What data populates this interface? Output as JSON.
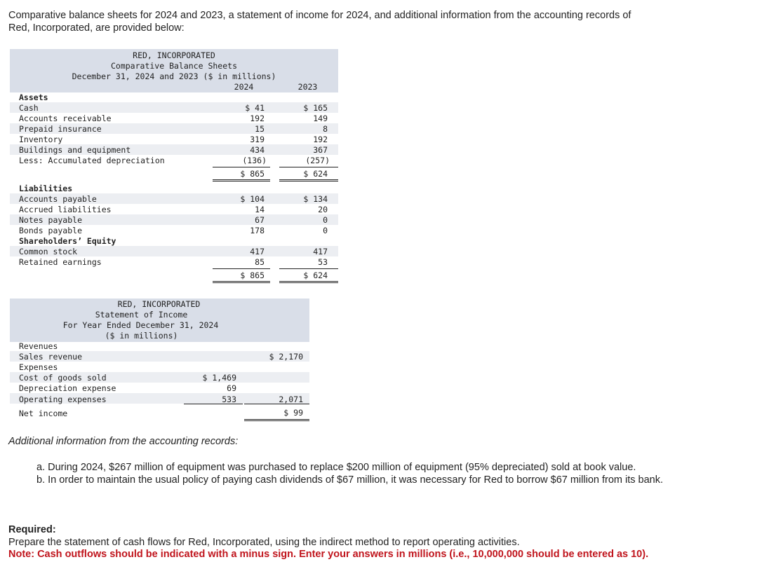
{
  "intro": "Comparative balance sheets for 2024 and 2023, a statement of income for 2024, and additional information from the accounting records of Red, Incorporated, are provided below:",
  "balance_sheet": {
    "title1": "RED, INCORPORATED",
    "title2": "Comparative Balance Sheets",
    "title3": "December 31, 2024 and 2023 ($ in millions)",
    "col_2024": "2024",
    "col_2023": "2023",
    "assets_heading": "Assets",
    "assets": [
      {
        "label": "Cash",
        "v2024": "$ 41",
        "v2023": "$ 165"
      },
      {
        "label": "Accounts receivable",
        "v2024": "192",
        "v2023": "149"
      },
      {
        "label": "Prepaid insurance",
        "v2024": "15",
        "v2023": "8"
      },
      {
        "label": "Inventory",
        "v2024": "319",
        "v2023": "192"
      },
      {
        "label": "Buildings and equipment",
        "v2024": "434",
        "v2023": "367"
      },
      {
        "label": "Less: Accumulated depreciation",
        "v2024": "(136)",
        "v2023": "(257)"
      }
    ],
    "assets_total_2024": "$ 865",
    "assets_total_2023": "$ 624",
    "liabilities_heading": "Liabilities",
    "liabilities": [
      {
        "label": "Accounts payable",
        "v2024": "$ 104",
        "v2023": "$ 134"
      },
      {
        "label": "Accrued liabilities",
        "v2024": "14",
        "v2023": "20"
      },
      {
        "label": "Notes payable",
        "v2024": "67",
        "v2023": "0"
      },
      {
        "label": "Bonds payable",
        "v2024": "178",
        "v2023": "0"
      }
    ],
    "equity_heading": "Shareholders’ Equity",
    "equity": [
      {
        "label": "Common stock",
        "v2024": "417",
        "v2023": "417"
      },
      {
        "label": "Retained earnings",
        "v2024": "85",
        "v2023": "53"
      }
    ],
    "liab_total_2024": "$ 865",
    "liab_total_2023": "$ 624"
  },
  "income_statement": {
    "title1": "RED, INCORPORATED",
    "title2": "Statement of Income",
    "title3": "For Year Ended December 31, 2024",
    "title4": "($ in millions)",
    "revenues_label": "Revenues",
    "sales_label": "Sales revenue",
    "sales_value": "$ 2,170",
    "expenses_label": "Expenses",
    "cogs_label": "Cost of goods sold",
    "cogs_value": "$ 1,469",
    "dep_label": "Depreciation expense",
    "dep_value": "69",
    "opex_label": "Operating expenses",
    "opex_value": "533",
    "total_exp_value": "2,071",
    "net_income_label": "Net income",
    "net_income_value": "$ 99"
  },
  "additional": {
    "heading": "Additional information from the accounting records:",
    "item_a": "a. During 2024, $267 million of equipment was purchased to replace $200 million of equipment (95% depreciated) sold at book value.",
    "item_b": "b. In order to maintain the usual policy of paying cash dividends of $67 million, it was necessary for Red to borrow $67 million from its bank."
  },
  "required": {
    "heading": "Required:",
    "text": "Prepare the statement of cash flows for Red, Incorporated, using the indirect method to report operating activities.",
    "note": "Note: Cash outflows should be indicated with a minus sign. Enter your answers in millions (i.e., 10,000,000 should be entered as 10)."
  }
}
